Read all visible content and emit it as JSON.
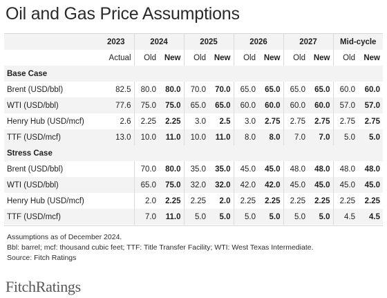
{
  "title": "Oil and Gas Price Assumptions",
  "header": {
    "years": [
      "2023",
      "2024",
      "2025",
      "2026",
      "2027",
      "Mid-cycle"
    ],
    "subheaders": [
      "Actual",
      "Old",
      "New",
      "Old",
      "New",
      "Old",
      "New",
      "Old",
      "New",
      "Old",
      "New"
    ]
  },
  "sections": [
    {
      "name": "Base Case",
      "rows": [
        {
          "label": "Brent (USD/bbl)",
          "values": [
            "82.5",
            "80.0",
            "80.0",
            "70.0",
            "70.0",
            "65.0",
            "65.0",
            "65.0",
            "65.0",
            "60.0",
            "60.0"
          ]
        },
        {
          "label": "WTI (USD/bbl)",
          "values": [
            "77.6",
            "75.0",
            "75.0",
            "65.0",
            "65.0",
            "60.0",
            "60.0",
            "60.0",
            "60.0",
            "57.0",
            "57.0"
          ]
        },
        {
          "label": "Henry Hub (USD/mcf)",
          "values": [
            "2.6",
            "2.25",
            "2.25",
            "3.0",
            "2.5",
            "3.0",
            "2.75",
            "2.75",
            "2.75",
            "2.75",
            "2.75"
          ]
        },
        {
          "label": "TTF (USD/mcf)",
          "values": [
            "13.0",
            "10.0",
            "11.0",
            "10.0",
            "11.0",
            "8.0",
            "8.0",
            "7.0",
            "7.0",
            "5.0",
            "5.0"
          ]
        }
      ]
    },
    {
      "name": "Stress Case",
      "rows": [
        {
          "label": "Brent (USD/bbl)",
          "values": [
            "",
            "70.0",
            "80.0",
            "35.0",
            "35.0",
            "45.0",
            "45.0",
            "48.0",
            "48.0",
            "48.0",
            "48.0"
          ]
        },
        {
          "label": "WTI (USD/bbl)",
          "values": [
            "",
            "65.0",
            "75.0",
            "32.0",
            "32.0",
            "42.0",
            "42.0",
            "45.0",
            "45.0",
            "45.0",
            "45.0"
          ]
        },
        {
          "label": "Henry Hub (USD/mcf)",
          "values": [
            "",
            "2.0",
            "2.25",
            "2.25",
            "2.0",
            "2.25",
            "2.25",
            "2.25",
            "2.25",
            "2.25",
            "2.25"
          ]
        },
        {
          "label": "TTF (USD/mcf)",
          "values": [
            "",
            "7.0",
            "11.0",
            "5.0",
            "5.0",
            "5.0",
            "5.0",
            "5.0",
            "5.0",
            "4.5",
            "4.5"
          ]
        }
      ]
    }
  ],
  "notes": [
    "Assumptions as of December 2024.",
    "Bbl: barrel; mcf: thousand cubic feet; TTF: Title Transfer Facility; WTI: West Texas Intermediate.",
    "Source: Fitch Ratings"
  ],
  "logo": "FitchRatings"
}
